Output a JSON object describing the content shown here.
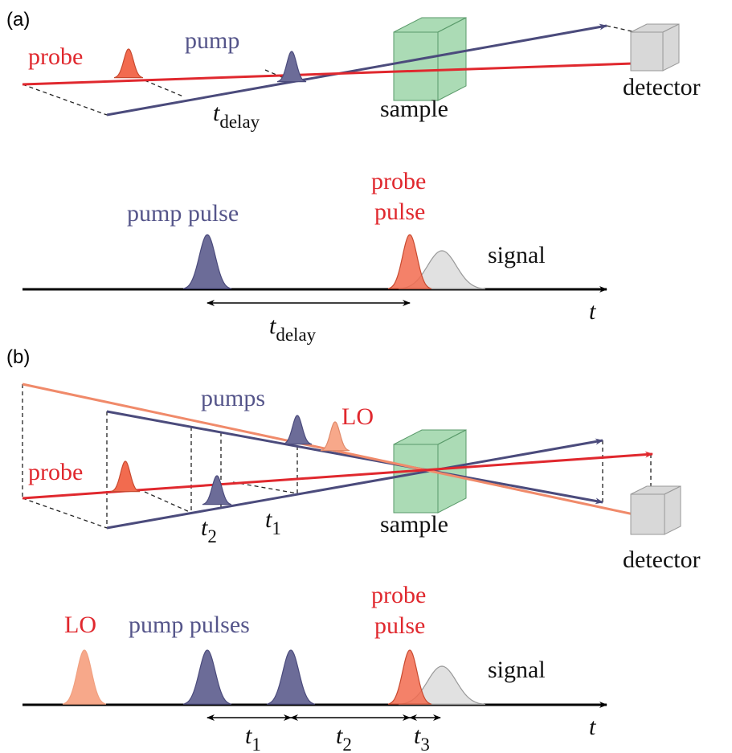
{
  "panel_a": {
    "label": "(a)",
    "setup": {
      "probe": "probe",
      "pump": "pump",
      "delay": {
        "symbol": "t",
        "subscript": "delay"
      },
      "sample": "sample",
      "detector": "detector"
    },
    "timeline": {
      "pump": "pump pulse",
      "probe": [
        "probe",
        "pulse"
      ],
      "signal": "signal",
      "axis": "t",
      "delay": {
        "symbol": "t",
        "subscript": "delay"
      }
    }
  },
  "panel_b": {
    "label": "(b)",
    "setup": {
      "pumps": "pumps",
      "lo": "LO",
      "probe": "probe",
      "t2": {
        "symbol": "t",
        "subscript": "2"
      },
      "t1": {
        "symbol": "t",
        "subscript": "1"
      },
      "sample": "sample",
      "detector": "detector"
    },
    "timeline": {
      "lo": "LO",
      "pumps": "pump pulses",
      "probe": [
        "probe",
        "pulse"
      ],
      "signal": "signal",
      "axis": "t",
      "t1": {
        "symbol": "t",
        "subscript": "1"
      },
      "t2": {
        "symbol": "t",
        "subscript": "2"
      },
      "t3": {
        "symbol": "t",
        "subscript": "3"
      }
    }
  }
}
